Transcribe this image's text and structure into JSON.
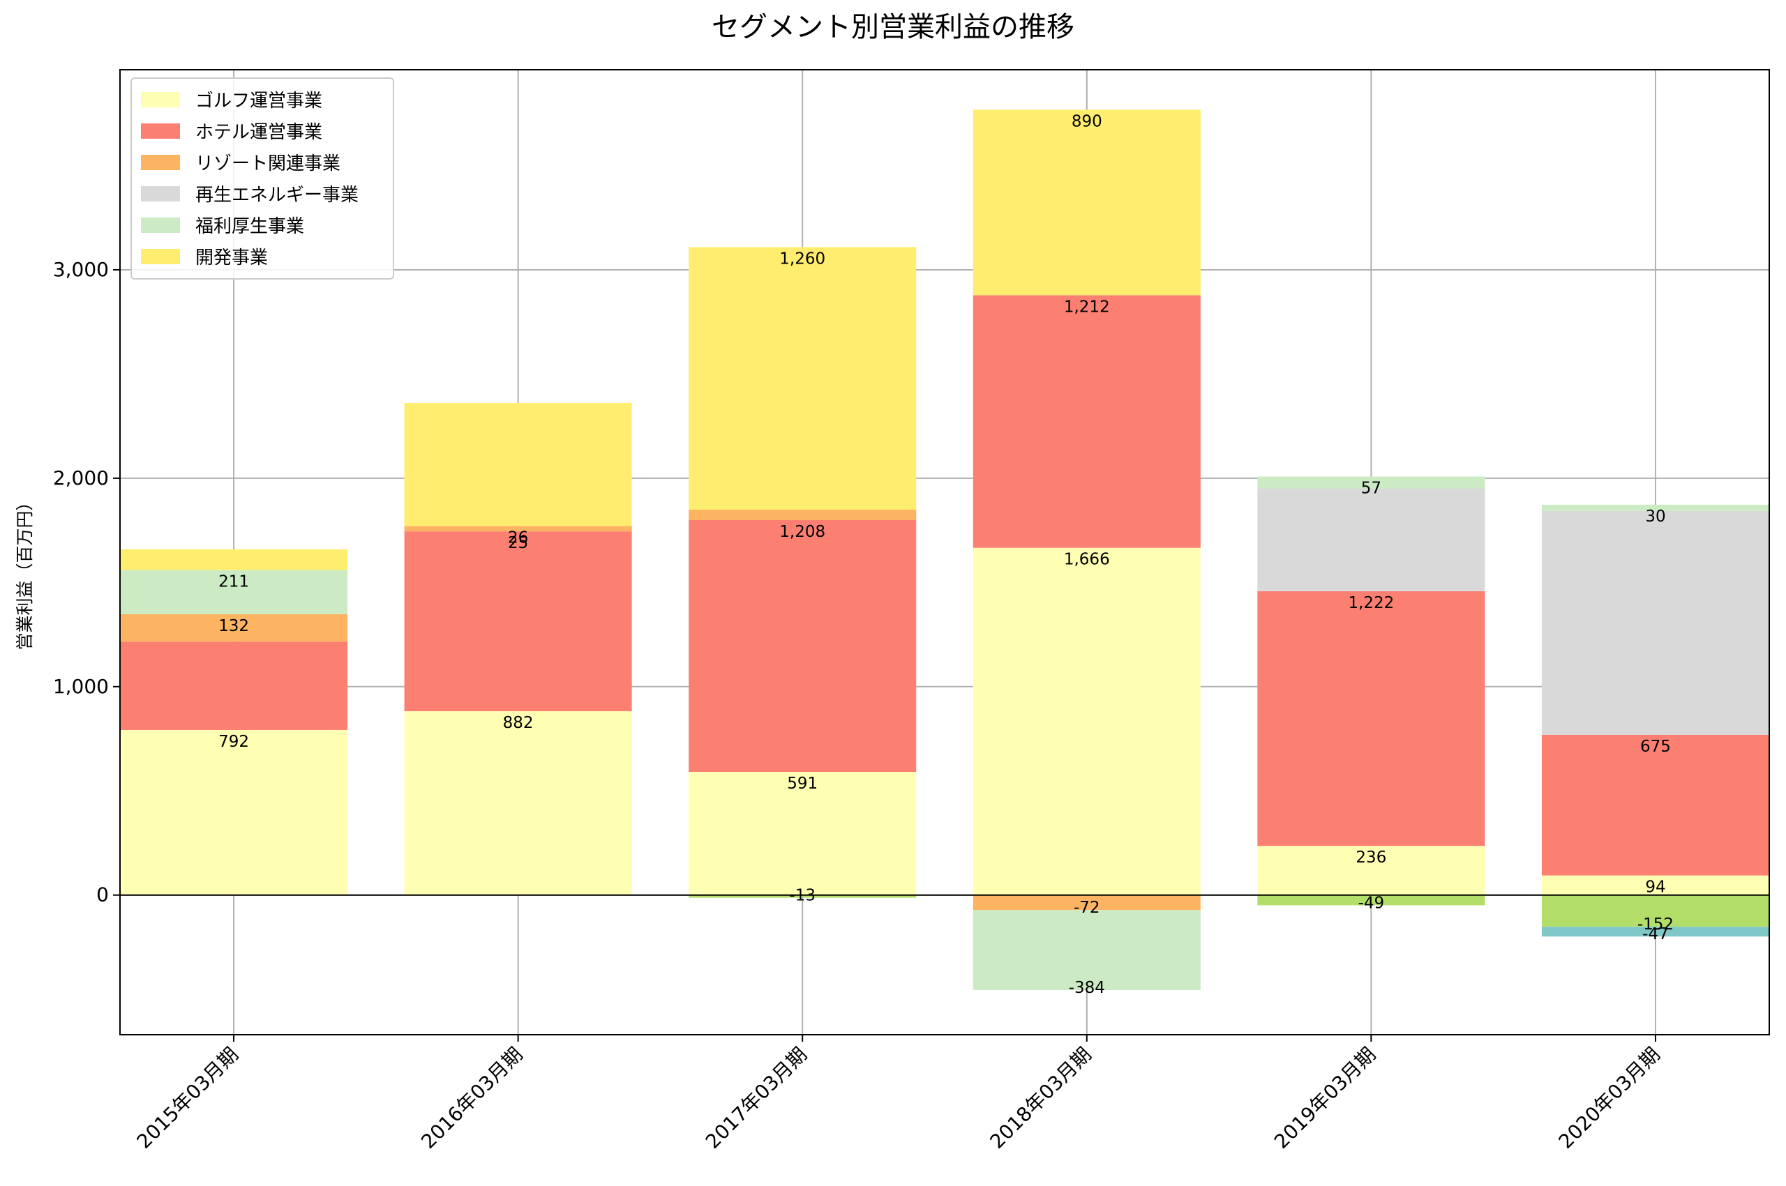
{
  "chart_data": {
    "type": "bar",
    "stacked": true,
    "title": "セグメント別営業利益の推移",
    "xlabel": "",
    "ylabel": "営業利益（百万円）",
    "categories": [
      "2015年03月期",
      "2016年03月期",
      "2017年03月期",
      "2018年03月期",
      "2019年03月期",
      "2020年03月期"
    ],
    "ylim": [
      -670,
      3960
    ],
    "yticks": [
      0,
      1000,
      2000,
      3000
    ],
    "ytick_labels": [
      "0",
      "1,000",
      "2,000",
      "3,000"
    ],
    "grid": true,
    "legend_position": "top-left",
    "series": [
      {
        "name": "ゴルフ運営事業",
        "color": "#ffffb3",
        "values": [
          792,
          882,
          591,
          1666,
          236,
          94
        ],
        "labels": [
          "792",
          "882",
          "591",
          "1,666",
          "236",
          "94"
        ]
      },
      {
        "name": "ホテル運営事業",
        "color": "#fb8072",
        "values": [
          424,
          863,
          1208,
          1212,
          1222,
          675
        ],
        "labels": [
          "",
          "",
          "1,208",
          "1,212",
          "1,222",
          "675"
        ]
      },
      {
        "name": "リゾート関連事業",
        "color": "#fdb462",
        "values": [
          132,
          26,
          50,
          -72,
          0,
          0
        ],
        "labels": [
          "132",
          "26",
          "",
          "-72",
          "",
          ""
        ]
      },
      {
        "name": "再生エネルギー事業",
        "color": "#d9d9d9",
        "values": [
          0,
          0,
          0,
          0,
          493,
          1074
        ],
        "labels": [
          "",
          "",
          "",
          "",
          "",
          ""
        ]
      },
      {
        "name": "福利厚生事業",
        "color": "#ccebc5",
        "values": [
          211,
          0,
          0,
          -384,
          57,
          30
        ],
        "labels": [
          "211",
          "",
          "",
          "-384",
          "57",
          "30"
        ]
      },
      {
        "name": "開発事業",
        "color": "#ffed6f",
        "values": [
          100,
          590,
          1260,
          890,
          0,
          0
        ],
        "labels": [
          "",
          "",
          "1,260",
          "890",
          "",
          ""
        ]
      },
      {
        "name": "",
        "color": "#b3de69",
        "values": [
          0,
          0,
          -13,
          0,
          -49,
          -152
        ],
        "labels": [
          "",
          "",
          "-13",
          "",
          "-49",
          "-152"
        ]
      },
      {
        "name": "",
        "color": "#80c8c8",
        "values": [
          0,
          0,
          0,
          0,
          0,
          -47
        ],
        "labels": [
          "",
          "",
          "",
          "",
          "",
          "-47"
        ]
      }
    ],
    "extra_labels": [
      {
        "category_index": 1,
        "text": "25",
        "anchor_value": 1745
      }
    ]
  }
}
